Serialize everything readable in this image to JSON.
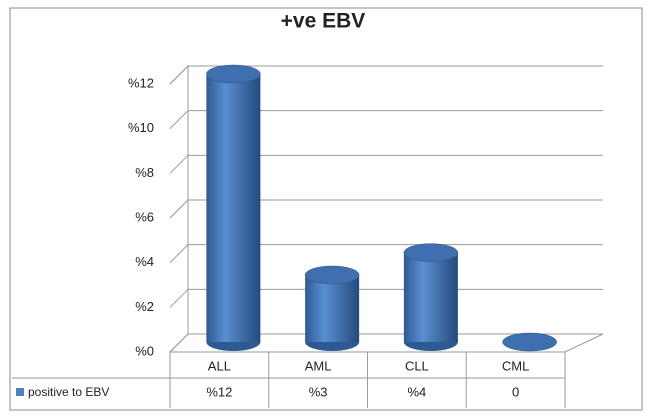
{
  "chart_data": {
    "type": "bar",
    "title": "+ve EBV",
    "categories": [
      "ALL",
      "AML",
      "CLL",
      "CML"
    ],
    "series": [
      {
        "name": "positive to EBV",
        "color": "#4f81bd",
        "values": [
          12,
          3,
          4,
          0
        ],
        "value_labels": [
          "%12",
          "%3",
          "%4",
          "0"
        ]
      }
    ],
    "ylim": [
      0,
      12
    ],
    "yticks": [
      {
        "value": 0,
        "label": "%0"
      },
      {
        "value": 2,
        "label": "%2"
      },
      {
        "value": 4,
        "label": "%4"
      },
      {
        "value": 6,
        "label": "%6"
      },
      {
        "value": 8,
        "label": "%8"
      },
      {
        "value": 10,
        "label": "%10"
      },
      {
        "value": 12,
        "label": "%12"
      }
    ],
    "grid": true
  }
}
